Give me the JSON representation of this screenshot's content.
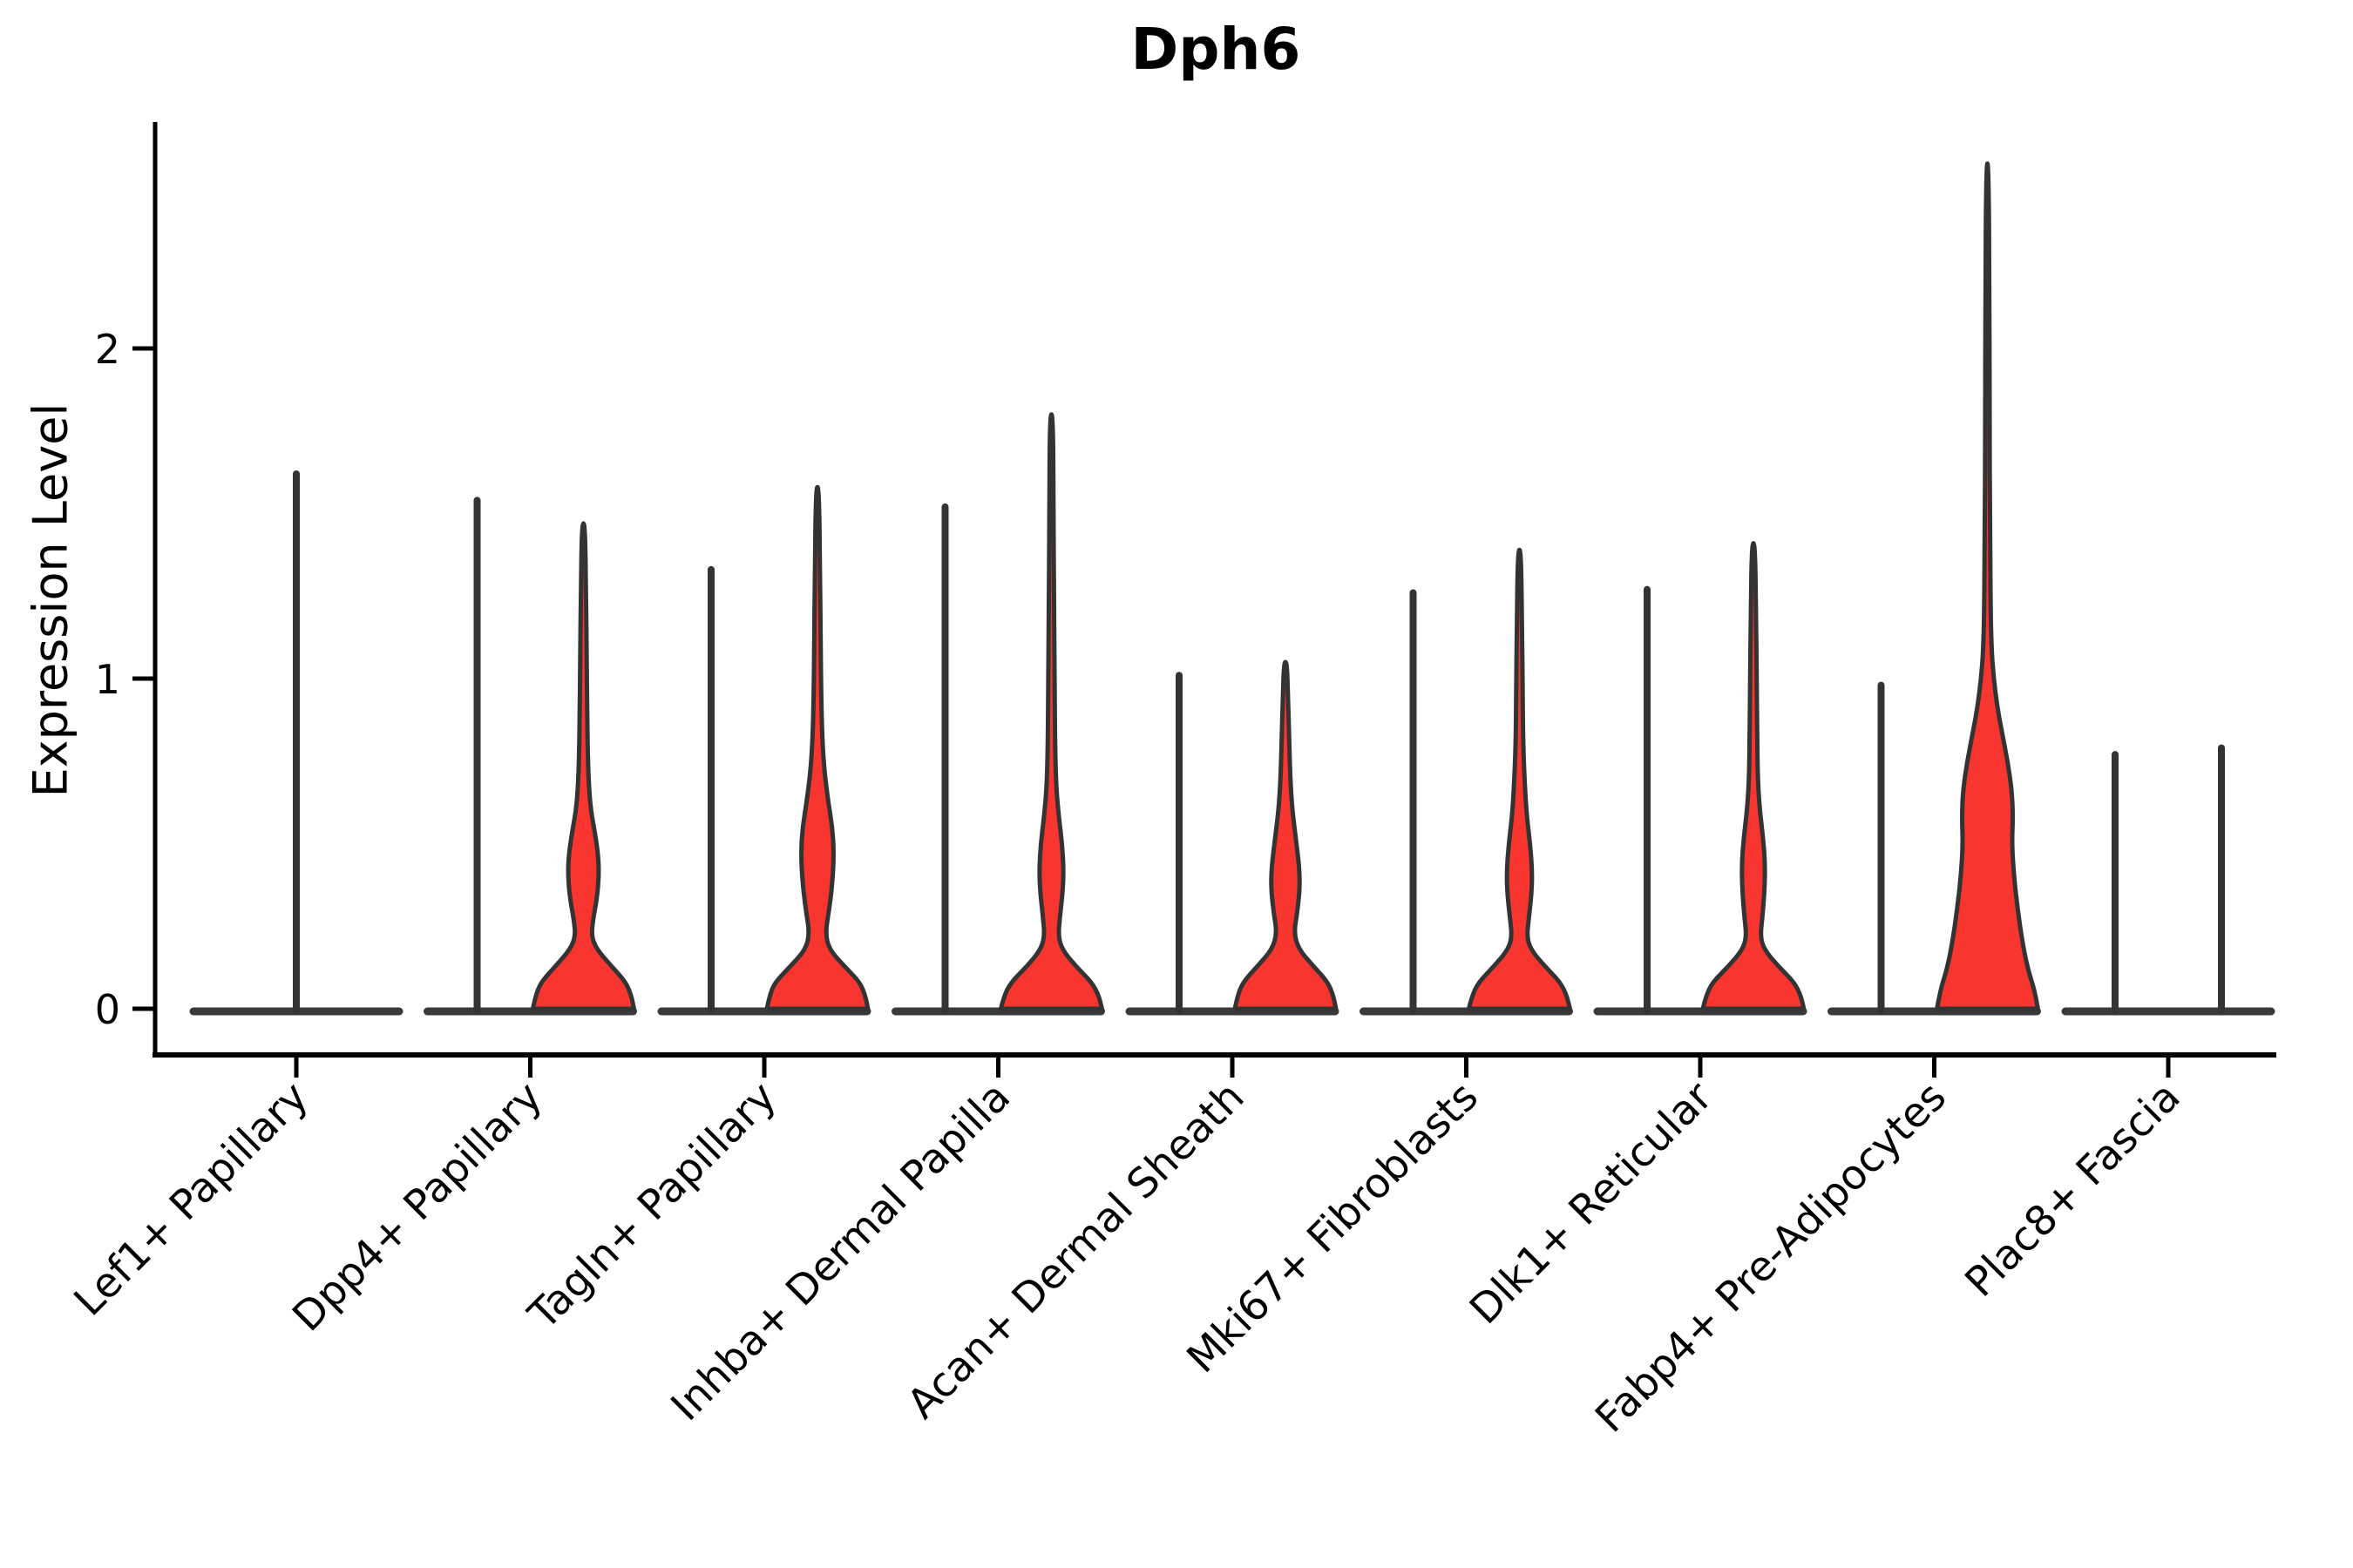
{
  "page": {
    "background": "#FFFFFF"
  },
  "chart_data": {
    "type": "violin",
    "title": "Dph6",
    "ylabel": "Expression Level",
    "xlabel": "",
    "yticks": [
      0,
      1,
      2
    ],
    "ylim": [
      -0.14,
      2.69
    ],
    "grid": false,
    "legend": "none",
    "colors": {
      "violin_fill": "#F8352E",
      "violin_outline": "#333333",
      "spike_line": "#333333",
      "baseline": "#3A3A3A",
      "axis": "#000000",
      "text": "#000000"
    },
    "categories": [
      "Lef1+ Papillary",
      "Dpp4+ Papillary",
      "Tagln+ Papillary",
      "Inhba+ Dermal Papilla",
      "Acan+ Dermal Sheath",
      "Mki67+ Fibroblasts",
      "Dlk1+ Reticular",
      "Fabp4+ Pre-Adipocytes",
      "Plac8+ Fascia"
    ],
    "groups_per_category": 2,
    "violins": [
      {
        "category": "Lef1+ Papillary",
        "slot": "full",
        "kind": "spike",
        "max": 1.62
      },
      {
        "category": "Dpp4+ Papillary",
        "slot": "left",
        "kind": "spike",
        "max": 1.54
      },
      {
        "category": "Dpp4+ Papillary",
        "slot": "right",
        "kind": "body",
        "max": 1.47,
        "profile": [
          [
            0,
            0.95
          ],
          [
            0.04,
            0.9
          ],
          [
            0.08,
            0.8
          ],
          [
            0.13,
            0.52
          ],
          [
            0.18,
            0.25
          ],
          [
            0.22,
            0.15
          ],
          [
            0.27,
            0.18
          ],
          [
            0.33,
            0.25
          ],
          [
            0.4,
            0.29
          ],
          [
            0.46,
            0.28
          ],
          [
            0.53,
            0.22
          ],
          [
            0.6,
            0.14
          ],
          [
            0.68,
            0.1
          ],
          [
            0.78,
            0.08
          ],
          [
            0.9,
            0.07
          ],
          [
            1.05,
            0.06
          ],
          [
            1.25,
            0.05
          ],
          [
            1.47,
            0.03
          ]
        ]
      },
      {
        "category": "Tagln+ Papillary",
        "slot": "left",
        "kind": "spike",
        "max": 1.33
      },
      {
        "category": "Tagln+ Papillary",
        "slot": "right",
        "kind": "body",
        "max": 1.58,
        "profile": [
          [
            0,
            0.95
          ],
          [
            0.04,
            0.9
          ],
          [
            0.08,
            0.8
          ],
          [
            0.13,
            0.5
          ],
          [
            0.18,
            0.22
          ],
          [
            0.23,
            0.15
          ],
          [
            0.3,
            0.22
          ],
          [
            0.38,
            0.28
          ],
          [
            0.47,
            0.31
          ],
          [
            0.55,
            0.28
          ],
          [
            0.63,
            0.2
          ],
          [
            0.72,
            0.13
          ],
          [
            0.82,
            0.09
          ],
          [
            0.95,
            0.07
          ],
          [
            1.1,
            0.06
          ],
          [
            1.3,
            0.05
          ],
          [
            1.58,
            0.03
          ]
        ]
      },
      {
        "category": "Inhba+ Dermal Papilla",
        "slot": "left",
        "kind": "spike",
        "max": 1.52
      },
      {
        "category": "Inhba+ Dermal Papilla",
        "slot": "right",
        "kind": "body",
        "max": 1.8,
        "profile": [
          [
            0,
            0.95
          ],
          [
            0.04,
            0.89
          ],
          [
            0.08,
            0.76
          ],
          [
            0.13,
            0.45
          ],
          [
            0.18,
            0.2
          ],
          [
            0.22,
            0.13
          ],
          [
            0.28,
            0.16
          ],
          [
            0.35,
            0.21
          ],
          [
            0.42,
            0.23
          ],
          [
            0.5,
            0.2
          ],
          [
            0.58,
            0.14
          ],
          [
            0.67,
            0.09
          ],
          [
            0.78,
            0.07
          ],
          [
            0.95,
            0.06
          ],
          [
            1.2,
            0.05
          ],
          [
            1.5,
            0.04
          ],
          [
            1.8,
            0.03
          ]
        ]
      },
      {
        "category": "Acan+ Dermal Sheath",
        "slot": "left",
        "kind": "spike",
        "max": 1.01
      },
      {
        "category": "Acan+ Dermal Sheath",
        "slot": "right",
        "kind": "body",
        "max": 1.05,
        "profile": [
          [
            0,
            0.95
          ],
          [
            0.04,
            0.9
          ],
          [
            0.08,
            0.8
          ],
          [
            0.13,
            0.52
          ],
          [
            0.18,
            0.25
          ],
          [
            0.23,
            0.16
          ],
          [
            0.29,
            0.22
          ],
          [
            0.36,
            0.27
          ],
          [
            0.43,
            0.26
          ],
          [
            0.51,
            0.2
          ],
          [
            0.6,
            0.13
          ],
          [
            0.7,
            0.09
          ],
          [
            0.82,
            0.07
          ],
          [
            0.93,
            0.05
          ],
          [
            1.05,
            0.03
          ]
        ]
      },
      {
        "category": "Mki67+ Fibroblasts",
        "slot": "left",
        "kind": "spike",
        "max": 1.26
      },
      {
        "category": "Mki67+ Fibroblasts",
        "slot": "right",
        "kind": "body",
        "max": 1.39,
        "profile": [
          [
            0,
            0.95
          ],
          [
            0.04,
            0.89
          ],
          [
            0.08,
            0.77
          ],
          [
            0.13,
            0.47
          ],
          [
            0.18,
            0.21
          ],
          [
            0.22,
            0.14
          ],
          [
            0.28,
            0.18
          ],
          [
            0.35,
            0.23
          ],
          [
            0.42,
            0.24
          ],
          [
            0.5,
            0.2
          ],
          [
            0.58,
            0.14
          ],
          [
            0.68,
            0.1
          ],
          [
            0.8,
            0.07
          ],
          [
            0.95,
            0.06
          ],
          [
            1.15,
            0.05
          ],
          [
            1.39,
            0.03
          ]
        ]
      },
      {
        "category": "Dlk1+ Reticular",
        "slot": "left",
        "kind": "spike",
        "max": 1.27
      },
      {
        "category": "Dlk1+ Reticular",
        "slot": "right",
        "kind": "body",
        "max": 1.41,
        "profile": [
          [
            0,
            0.95
          ],
          [
            0.04,
            0.89
          ],
          [
            0.08,
            0.77
          ],
          [
            0.13,
            0.46
          ],
          [
            0.18,
            0.2
          ],
          [
            0.22,
            0.13
          ],
          [
            0.28,
            0.17
          ],
          [
            0.36,
            0.21
          ],
          [
            0.44,
            0.22
          ],
          [
            0.52,
            0.18
          ],
          [
            0.6,
            0.12
          ],
          [
            0.7,
            0.08
          ],
          [
            0.85,
            0.07
          ],
          [
            1.0,
            0.06
          ],
          [
            1.2,
            0.05
          ],
          [
            1.41,
            0.03
          ]
        ]
      },
      {
        "category": "Fabp4+ Pre-Adipocytes",
        "slot": "left",
        "kind": "spike",
        "max": 0.98
      },
      {
        "category": "Fabp4+ Pre-Adipocytes",
        "slot": "right",
        "kind": "body",
        "max": 2.56,
        "profile": [
          [
            0,
            0.95
          ],
          [
            0.06,
            0.88
          ],
          [
            0.12,
            0.76
          ],
          [
            0.2,
            0.66
          ],
          [
            0.3,
            0.57
          ],
          [
            0.4,
            0.5
          ],
          [
            0.5,
            0.46
          ],
          [
            0.58,
            0.48
          ],
          [
            0.66,
            0.46
          ],
          [
            0.75,
            0.38
          ],
          [
            0.84,
            0.27
          ],
          [
            0.92,
            0.18
          ],
          [
            1.0,
            0.12
          ],
          [
            1.08,
            0.08
          ],
          [
            1.2,
            0.06
          ],
          [
            1.45,
            0.05
          ],
          [
            1.8,
            0.04
          ],
          [
            2.2,
            0.04
          ],
          [
            2.56,
            0.02
          ]
        ]
      },
      {
        "category": "Plac8+ Fascia",
        "slot": "left",
        "kind": "spike",
        "max": 0.77
      },
      {
        "category": "Plac8+ Fascia",
        "slot": "right",
        "kind": "spike",
        "max": 0.79
      }
    ]
  }
}
